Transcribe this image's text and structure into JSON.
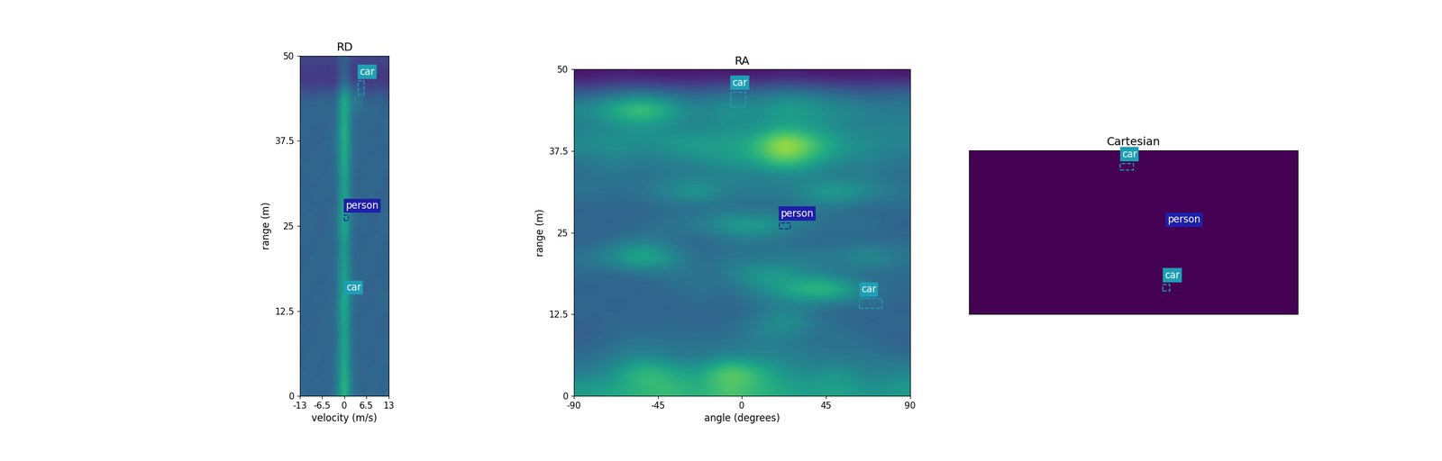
{
  "chart_data": [
    {
      "type": "heatmap",
      "title": "RD",
      "xlabel": "velocity (m/s)",
      "ylabel": "range (m)",
      "xlim": [
        -13,
        13
      ],
      "ylim": [
        0,
        50
      ],
      "xticks": [
        -13,
        -6.5,
        0,
        6.5,
        13
      ],
      "yticks": [
        0,
        12.5,
        25,
        37.5,
        50
      ],
      "clim": [
        0,
        1
      ],
      "cells": [
        [
          0.35,
          0.3,
          0.36,
          0.31,
          0.34,
          0.4,
          0.75,
          0.4,
          0.33,
          0.31,
          0.36,
          0.3,
          0.34
        ],
        [
          0.32,
          0.35,
          0.3,
          0.34,
          0.31,
          0.38,
          0.7,
          0.38,
          0.35,
          0.3,
          0.33,
          0.35,
          0.31
        ],
        [
          0.3,
          0.33,
          0.35,
          0.3,
          0.36,
          0.37,
          0.68,
          0.37,
          0.31,
          0.34,
          0.3,
          0.33,
          0.35
        ],
        [
          0.34,
          0.31,
          0.32,
          0.35,
          0.3,
          0.36,
          0.66,
          0.36,
          0.34,
          0.32,
          0.35,
          0.31,
          0.32
        ],
        [
          0.31,
          0.34,
          0.3,
          0.33,
          0.35,
          0.37,
          0.67,
          0.36,
          0.3,
          0.35,
          0.31,
          0.34,
          0.3
        ],
        [
          0.33,
          0.3,
          0.35,
          0.31,
          0.32,
          0.38,
          0.72,
          0.38,
          0.33,
          0.3,
          0.34,
          0.32,
          0.35
        ],
        [
          0.35,
          0.32,
          0.31,
          0.34,
          0.3,
          0.36,
          0.65,
          0.37,
          0.35,
          0.33,
          0.3,
          0.35,
          0.31
        ],
        [
          0.3,
          0.35,
          0.33,
          0.3,
          0.35,
          0.37,
          0.64,
          0.36,
          0.31,
          0.34,
          0.33,
          0.3,
          0.34
        ],
        [
          0.32,
          0.31,
          0.34,
          0.35,
          0.31,
          0.35,
          0.6,
          0.35,
          0.34,
          0.3,
          0.35,
          0.33,
          0.3
        ],
        [
          0.34,
          0.33,
          0.3,
          0.32,
          0.34,
          0.36,
          0.66,
          0.36,
          0.3,
          0.33,
          0.31,
          0.34,
          0.33
        ],
        [
          0.31,
          0.35,
          0.32,
          0.3,
          0.33,
          0.37,
          0.7,
          0.37,
          0.33,
          0.35,
          0.3,
          0.31,
          0.35
        ],
        [
          0.35,
          0.3,
          0.34,
          0.33,
          0.3,
          0.36,
          0.66,
          0.35,
          0.35,
          0.31,
          0.34,
          0.3,
          0.32
        ],
        [
          0.3,
          0.33,
          0.31,
          0.35,
          0.34,
          0.35,
          0.64,
          0.36,
          0.3,
          0.34,
          0.33,
          0.35,
          0.3
        ],
        [
          0.33,
          0.34,
          0.35,
          0.3,
          0.31,
          0.37,
          0.68,
          0.37,
          0.34,
          0.3,
          0.35,
          0.32,
          0.34
        ],
        [
          0.31,
          0.3,
          0.33,
          0.34,
          0.35,
          0.36,
          0.72,
          0.38,
          0.31,
          0.35,
          0.3,
          0.34,
          0.31
        ],
        [
          0.35,
          0.32,
          0.3,
          0.31,
          0.33,
          0.38,
          0.75,
          0.37,
          0.35,
          0.32,
          0.33,
          0.3,
          0.35
        ],
        [
          0.3,
          0.35,
          0.34,
          0.33,
          0.3,
          0.36,
          0.7,
          0.36,
          0.32,
          0.34,
          0.35,
          0.31,
          0.33
        ],
        [
          0.34,
          0.31,
          0.32,
          0.35,
          0.34,
          0.37,
          0.73,
          0.45,
          0.5,
          0.31,
          0.32,
          0.35,
          0.3
        ],
        [
          0.14,
          0.12,
          0.15,
          0.13,
          0.12,
          0.16,
          0.35,
          0.16,
          0.13,
          0.15,
          0.12,
          0.14,
          0.13
        ],
        [
          0.2,
          0.22,
          0.19,
          0.21,
          0.2,
          0.22,
          0.35,
          0.22,
          0.21,
          0.19,
          0.22,
          0.2,
          0.21
        ]
      ],
      "boxes": [
        {
          "label": "car",
          "x": [
            4.0,
            5.8
          ],
          "y": [
            44.2,
            46.3
          ],
          "color": "#1f9fb4"
        },
        {
          "label": "person",
          "x": [
            0.0,
            1.2
          ],
          "y": [
            25.8,
            26.6
          ],
          "color": "#1f1fa8"
        },
        {
          "label": "car",
          "x": [
            0.0,
            0.8
          ],
          "y": [
            13.4,
            14.6
          ],
          "color": "#1f9fb4"
        }
      ]
    },
    {
      "type": "heatmap",
      "title": "RA",
      "xlabel": "angle (degrees)",
      "ylabel": "range (m)",
      "xlim": [
        -90,
        90
      ],
      "ylim": [
        0,
        50
      ],
      "xticks": [
        -90,
        -45,
        0,
        45,
        90
      ],
      "yticks": [
        0,
        12.5,
        25,
        37.5,
        50
      ],
      "clim": [
        0,
        1
      ],
      "cells": [
        [
          0.55,
          0.6,
          0.65,
          0.7,
          0.6,
          0.75,
          0.65,
          0.6,
          0.55,
          0.6,
          0.5,
          0.55
        ],
        [
          0.4,
          0.5,
          0.75,
          0.6,
          0.55,
          0.85,
          0.7,
          0.5,
          0.45,
          0.55,
          0.4,
          0.45
        ],
        [
          0.35,
          0.4,
          0.45,
          0.4,
          0.35,
          0.45,
          0.4,
          0.45,
          0.4,
          0.35,
          0.4,
          0.35
        ],
        [
          0.3,
          0.35,
          0.4,
          0.35,
          0.4,
          0.35,
          0.45,
          0.4,
          0.35,
          0.4,
          0.35,
          0.3
        ],
        [
          0.3,
          0.35,
          0.3,
          0.35,
          0.3,
          0.35,
          0.4,
          0.6,
          0.4,
          0.35,
          0.3,
          0.35
        ],
        [
          0.35,
          0.3,
          0.35,
          0.3,
          0.35,
          0.3,
          0.35,
          0.4,
          0.35,
          0.3,
          0.35,
          0.3
        ],
        [
          0.3,
          0.35,
          0.3,
          0.35,
          0.4,
          0.35,
          0.45,
          0.6,
          0.8,
          0.75,
          0.4,
          0.35
        ],
        [
          0.35,
          0.3,
          0.35,
          0.4,
          0.35,
          0.4,
          0.6,
          0.55,
          0.4,
          0.35,
          0.3,
          0.35
        ],
        [
          0.4,
          0.55,
          0.75,
          0.5,
          0.35,
          0.4,
          0.35,
          0.4,
          0.45,
          0.4,
          0.6,
          0.4
        ],
        [
          0.3,
          0.35,
          0.4,
          0.35,
          0.3,
          0.35,
          0.4,
          0.35,
          0.3,
          0.35,
          0.3,
          0.35
        ],
        [
          0.35,
          0.3,
          0.35,
          0.4,
          0.45,
          0.6,
          0.65,
          0.5,
          0.4,
          0.35,
          0.4,
          0.3
        ],
        [
          0.3,
          0.35,
          0.3,
          0.35,
          0.3,
          0.35,
          0.3,
          0.35,
          0.4,
          0.35,
          0.3,
          0.35
        ],
        [
          0.4,
          0.35,
          0.4,
          0.5,
          0.65,
          0.4,
          0.45,
          0.4,
          0.55,
          0.65,
          0.5,
          0.4
        ],
        [
          0.35,
          0.4,
          0.35,
          0.4,
          0.35,
          0.45,
          0.4,
          0.45,
          0.4,
          0.35,
          0.4,
          0.35
        ],
        [
          0.4,
          0.45,
          0.4,
          0.45,
          0.5,
          0.55,
          0.6,
          0.85,
          0.65,
          0.5,
          0.45,
          0.4
        ],
        [
          0.5,
          0.55,
          0.5,
          0.55,
          0.6,
          0.55,
          0.65,
          1.0,
          0.75,
          0.55,
          0.5,
          0.45
        ],
        [
          0.4,
          0.45,
          0.5,
          0.45,
          0.4,
          0.5,
          0.45,
          0.55,
          0.5,
          0.45,
          0.4,
          0.45
        ],
        [
          0.5,
          0.7,
          0.85,
          0.6,
          0.45,
          0.55,
          0.5,
          0.6,
          0.55,
          0.5,
          0.45,
          0.4
        ],
        [
          0.3,
          0.35,
          0.4,
          0.35,
          0.3,
          0.4,
          0.35,
          0.45,
          0.4,
          0.35,
          0.3,
          0.35
        ],
        [
          0.05,
          0.08,
          0.06,
          0.05,
          0.07,
          0.06,
          0.05,
          0.08,
          0.06,
          0.05,
          0.07,
          0.06
        ]
      ],
      "boxes": [
        {
          "label": "car",
          "x": [
            -6.0,
            2.0
          ],
          "y": [
            44.3,
            46.5
          ],
          "color": "#1f9fb4"
        },
        {
          "label": "person",
          "x": [
            20.0,
            26.0
          ],
          "y": [
            25.6,
            26.5
          ],
          "color": "#1f1fa8"
        },
        {
          "label": "car",
          "x": [
            63.0,
            75.0
          ],
          "y": [
            13.4,
            14.9
          ],
          "color": "#1f9fb4"
        }
      ]
    },
    {
      "type": "heatmap",
      "title": "Cartesian",
      "tick_labels": false,
      "xlim": [
        -50,
        50
      ],
      "ylim": [
        0,
        50
      ],
      "clim": [
        0,
        1
      ],
      "cells": [
        [
          0.0
        ]
      ],
      "boxes": [
        {
          "label": "car",
          "x": [
            -4.0,
            0.0
          ],
          "y": [
            44.0,
            46.0
          ],
          "color": "#1f9fb4"
        },
        {
          "label": "person",
          "x": [
            10.0,
            10.0
          ],
          "y": [
            26.0,
            26.0
          ],
          "color": "#1f1fa8"
        },
        {
          "label": "car",
          "x": [
            9.0,
            11.0
          ],
          "y": [
            7.0,
            9.0
          ],
          "color": "#1f9fb4"
        }
      ]
    }
  ]
}
